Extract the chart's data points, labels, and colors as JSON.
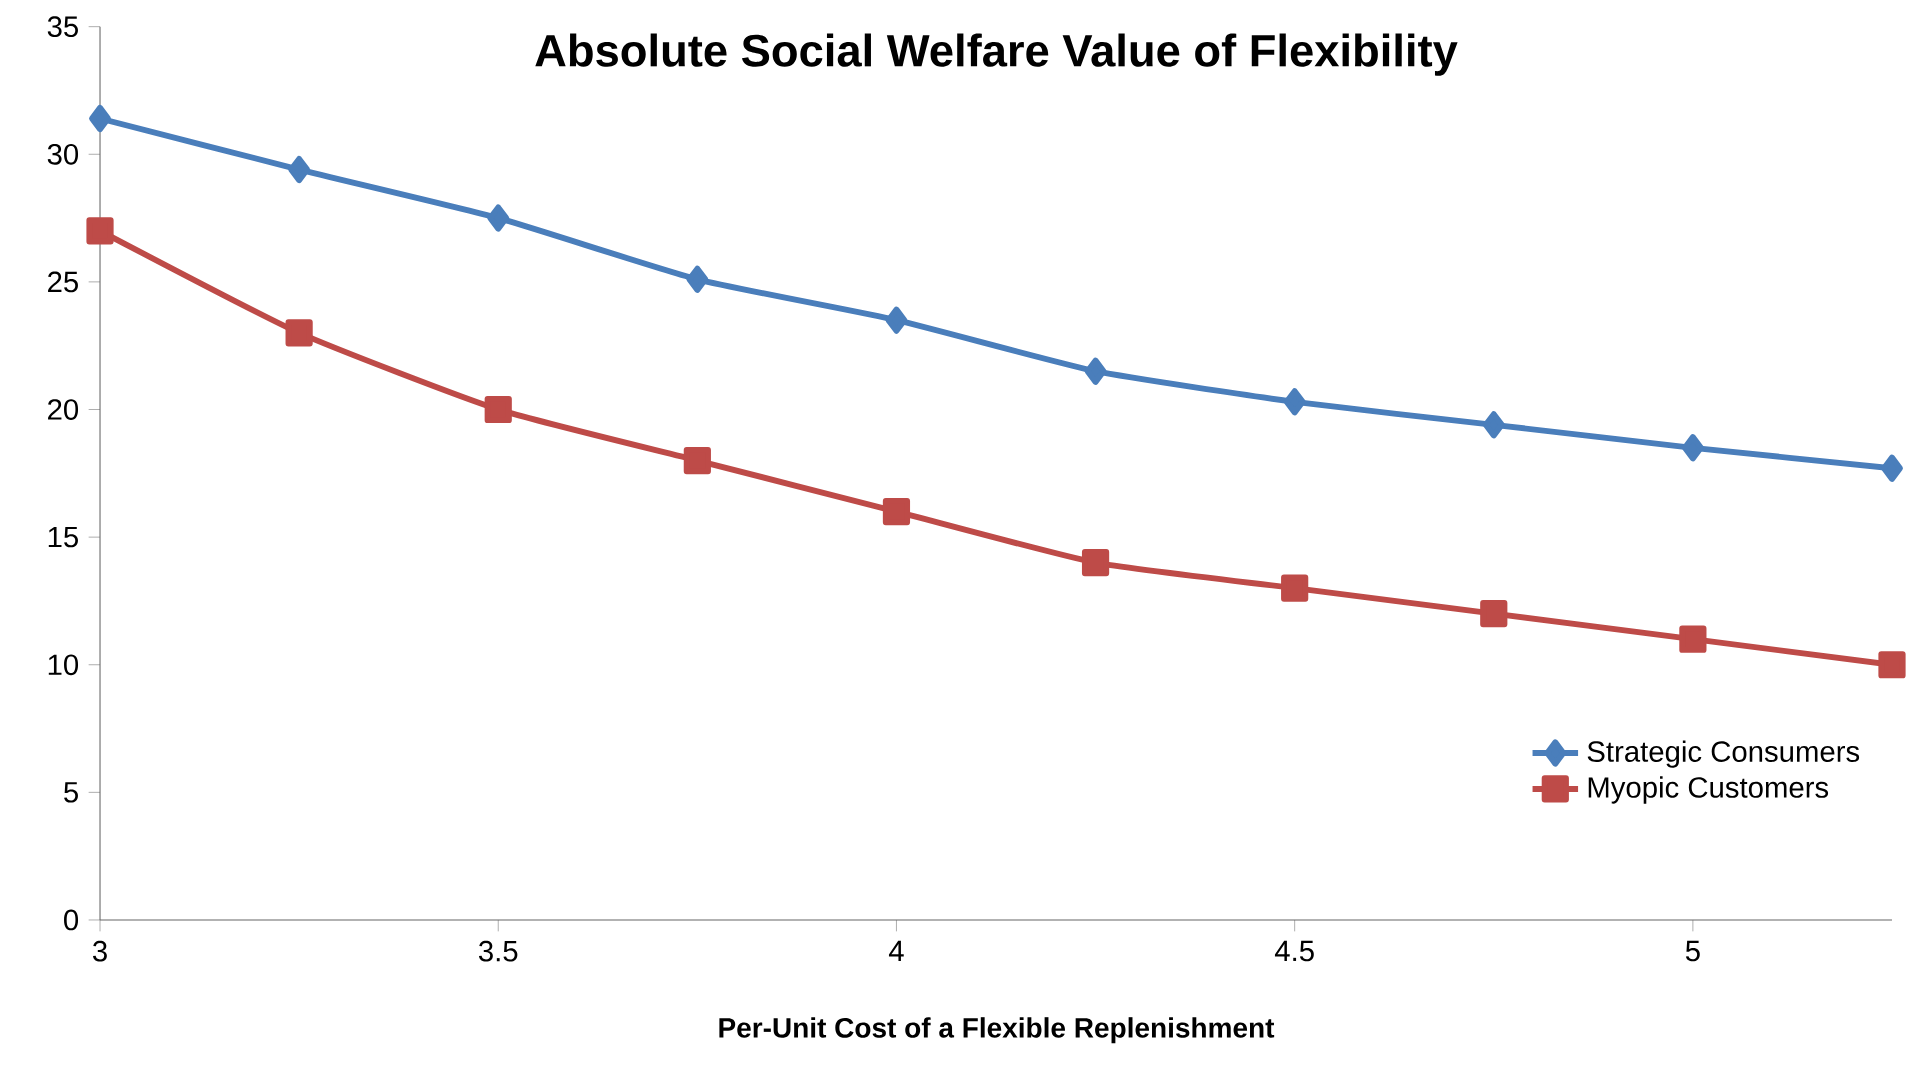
{
  "chart_data": {
    "type": "line",
    "title": "**Absolute Social Welfare Value of Flexibility**",
    "xlabel": "**Per-Unit Cost of a Flexible Replenishment**",
    "x": [
      3,
      3.25,
      3.5,
      3.75,
      4,
      4.25,
      4.5,
      4.75,
      5,
      5.25
    ],
    "series": [
      {
        "name": "Strategic Consumers",
        "color": "#4a7ebb",
        "marker": "diamond",
        "values": [
          31.4,
          29.4,
          27.5,
          25.1,
          23.5,
          21.5,
          20.3,
          19.4,
          18.5,
          17.7
        ]
      },
      {
        "name": "Myopic Customers",
        "color": "#be4b48",
        "marker": "square",
        "values": [
          27,
          23,
          20,
          18,
          16,
          14,
          13,
          12,
          11,
          10
        ]
      }
    ],
    "xlim": [
      3,
      5.25
    ],
    "ylim": [
      0,
      35
    ],
    "xticks": [
      3,
      3.5,
      4,
      4.5,
      5
    ],
    "yticks": [
      0,
      5,
      10,
      15,
      20,
      25,
      30,
      35
    ],
    "grid": false,
    "legend": "bottom right",
    "line_style": "solid"
  }
}
